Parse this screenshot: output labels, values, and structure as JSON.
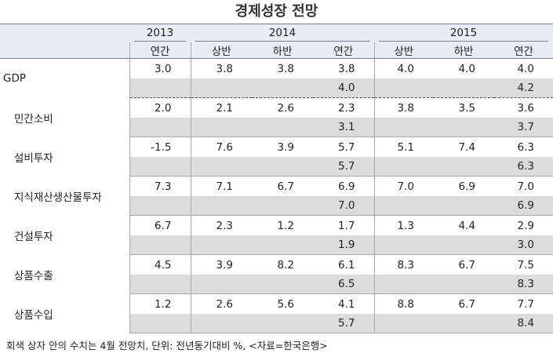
{
  "title": "경제성장 전망",
  "years": {
    "y2013": "2013",
    "y2014": "2014",
    "y2015": "2015"
  },
  "periods": [
    "연간",
    "상반",
    "하반",
    "연간",
    "상반",
    "하반",
    "연간"
  ],
  "rows": [
    {
      "label": "GDP",
      "values": [
        "3.0",
        "3.8",
        "3.8",
        "3.8",
        "4.0",
        "4.0",
        "4.0"
      ],
      "prev": [
        "4.0",
        "4.2"
      ]
    },
    {
      "label": "민간소비",
      "values": [
        "2.0",
        "2.1",
        "2.6",
        "2.3",
        "3.8",
        "3.5",
        "3.6"
      ],
      "prev": [
        "3.1",
        "3.7"
      ]
    },
    {
      "label": "설비투자",
      "values": [
        "-1.5",
        "7.6",
        "3.9",
        "5.7",
        "5.1",
        "7.4",
        "6.3"
      ],
      "prev": [
        "5.7",
        "6.3"
      ]
    },
    {
      "label": "지식재산생산물투자",
      "values": [
        "7.3",
        "7.1",
        "6.7",
        "6.9",
        "7.0",
        "6.9",
        "7.0"
      ],
      "prev": [
        "7.0",
        "6.9"
      ]
    },
    {
      "label": "건설투자",
      "values": [
        "6.7",
        "2.3",
        "1.2",
        "1.7",
        "1.3",
        "4.4",
        "2.9"
      ],
      "prev": [
        "1.9",
        "3.0"
      ]
    },
    {
      "label": "상품수출",
      "values": [
        "4.5",
        "3.9",
        "8.2",
        "6.1",
        "8.3",
        "6.7",
        "7.5"
      ],
      "prev": [
        "6.5",
        "8.3"
      ]
    },
    {
      "label": "상품수입",
      "values": [
        "1.2",
        "2.6",
        "5.6",
        "4.1",
        "8.8",
        "6.7",
        "7.7"
      ],
      "prev": [
        "5.7",
        "8.4"
      ]
    }
  ],
  "footnote": "회색 상자 안의 수치는 4월 전망치, 단위: 전년동기대비 %, <자료=한국은행>",
  "colors": {
    "header_bg": "#e9ecf5",
    "shade": "#dcdcdc",
    "rule": "#7a7f95"
  }
}
